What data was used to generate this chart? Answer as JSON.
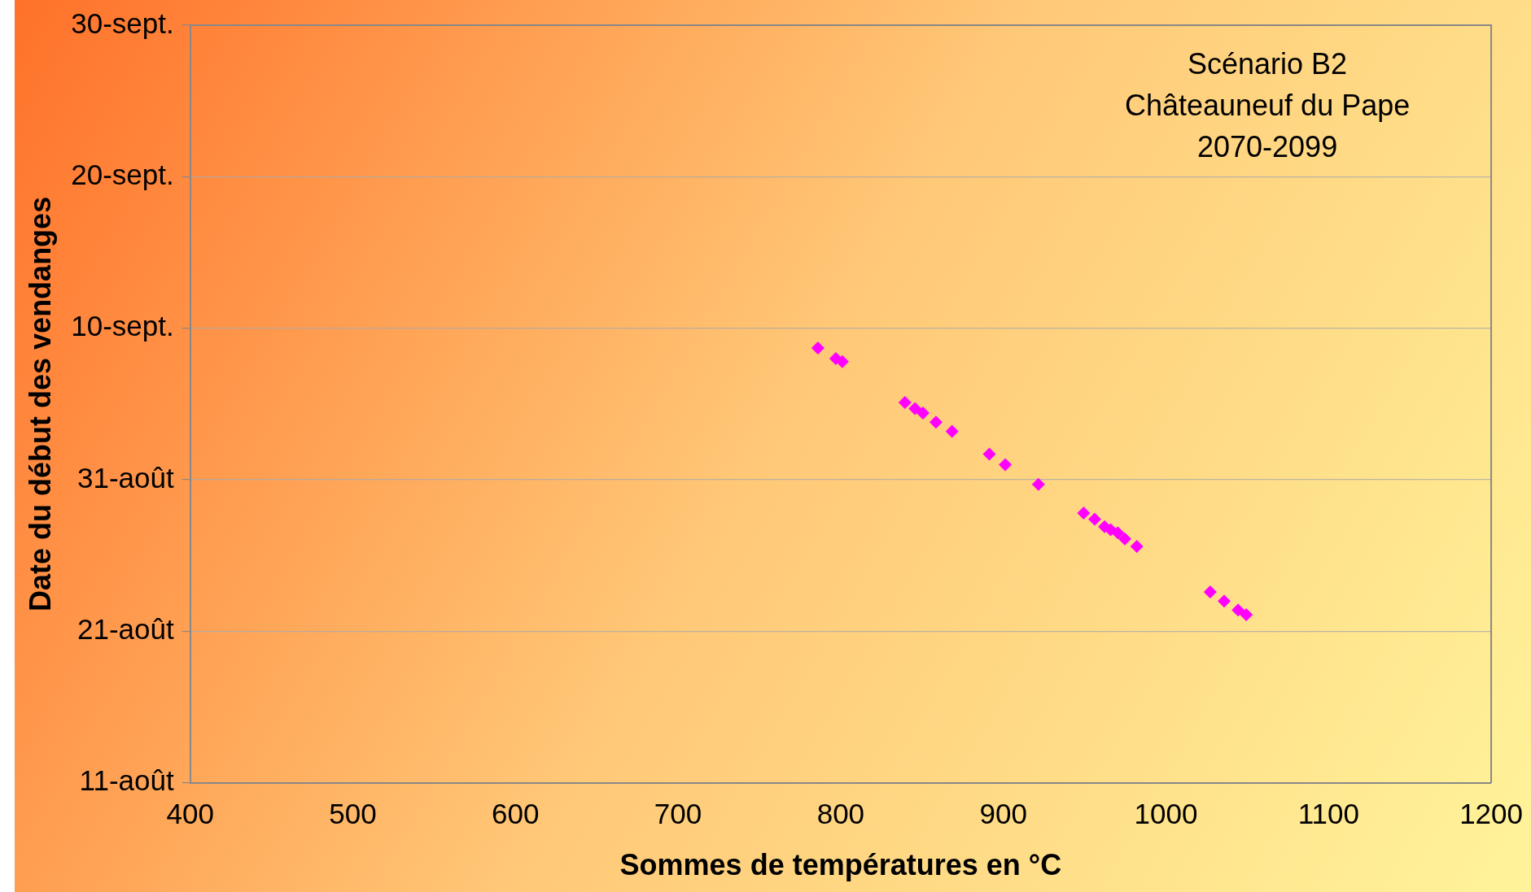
{
  "chart_data": {
    "type": "scatter",
    "title": "Scénario B2\nChâteauneuf du Pape\n2070-2099",
    "xlabel": "Sommes de températures en °C",
    "ylabel": "Date du début des vendanges",
    "x": [
      786,
      797,
      801,
      839.5,
      845.7,
      850.6,
      858.6,
      868.5,
      891.4,
      901.2,
      921.6,
      949.4,
      956.2,
      962.3,
      966,
      970.4,
      974.7,
      982.1,
      1027.2,
      1035.8,
      1044.4,
      1049.4
    ],
    "series": [
      {
        "color": "#ff00ff",
        "values": [
          39.7,
          39.0,
          38.8,
          36.1,
          35.7,
          35.4,
          34.8,
          34.2,
          32.7,
          32.0,
          30.7,
          28.8,
          28.4,
          27.9,
          27.7,
          27.5,
          27.1,
          26.6,
          23.6,
          23.0,
          22.4,
          22.1
        ]
      }
    ],
    "xlim": [
      400,
      1200
    ],
    "xticks": [
      400,
      500,
      600,
      700,
      800,
      900,
      1000,
      1100,
      1200
    ],
    "ylim": [
      11,
      61
    ],
    "yticks": [
      {
        "value": 11,
        "label": "11-août"
      },
      {
        "value": 21,
        "label": "21-août"
      },
      {
        "value": 31,
        "label": "31-août"
      },
      {
        "value": 41,
        "label": "10-sept."
      },
      {
        "value": 51,
        "label": "20-sept."
      },
      {
        "value": 61,
        "label": "30-sept."
      }
    ],
    "grid": "y",
    "marker": "diamond",
    "legend": false
  }
}
